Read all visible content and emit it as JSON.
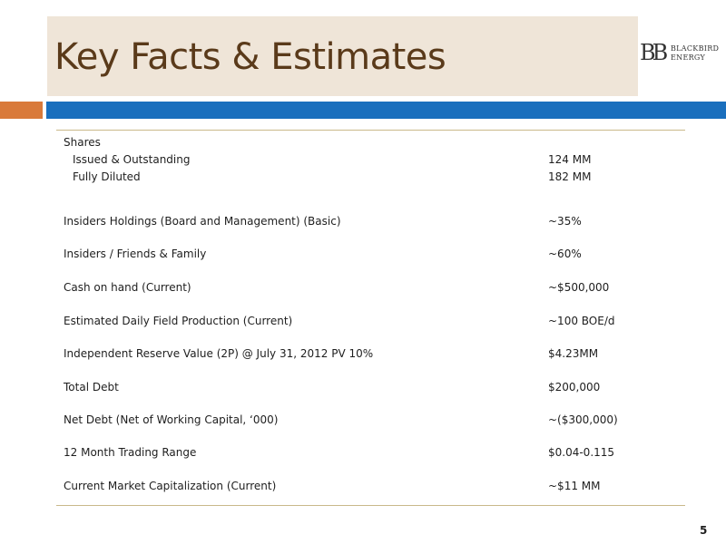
{
  "slide": {
    "title": "Key Facts & Estimates",
    "page_number": "5"
  },
  "logo": {
    "mark": "BB",
    "line1": "BLACKBIRD",
    "line2": "ENERGY"
  },
  "table": {
    "rows": [
      {
        "label": "Shares",
        "value": ""
      },
      {
        "label": "Issued & Outstanding",
        "value": "124 MM"
      },
      {
        "label": "Fully Diluted",
        "value": "182 MM"
      },
      {
        "label": "Insiders Holdings (Board and Management) (Basic)",
        "value": "~35%"
      },
      {
        "label": "Insiders / Friends & Family",
        "value": "~60%"
      },
      {
        "label": "Cash on hand (Current)",
        "value": "~$500,000"
      },
      {
        "label": "Estimated Daily Field Production (Current)",
        "value": "~100 BOE/d"
      },
      {
        "label": "Independent Reserve Value (2P) @ July 31, 2012 PV 10%",
        "value": "$4.23MM"
      },
      {
        "label": "Total Debt",
        "value": "$200,000"
      },
      {
        "label": "Net Debt (Net of Working Capital, ‘000)",
        "value": "~($300,000)"
      },
      {
        "label": "12 Month Trading Range",
        "value": "$0.04-0.115"
      },
      {
        "label": "Current Market Capitalization  (Current)",
        "value": "~$11 MM"
      }
    ]
  },
  "colors": {
    "title_background": "#efe5d8",
    "title_text": "#5a3a1a",
    "accent_orange": "#d97a3a",
    "accent_blue": "#1a6fbd",
    "rule": "#c9b98a"
  }
}
